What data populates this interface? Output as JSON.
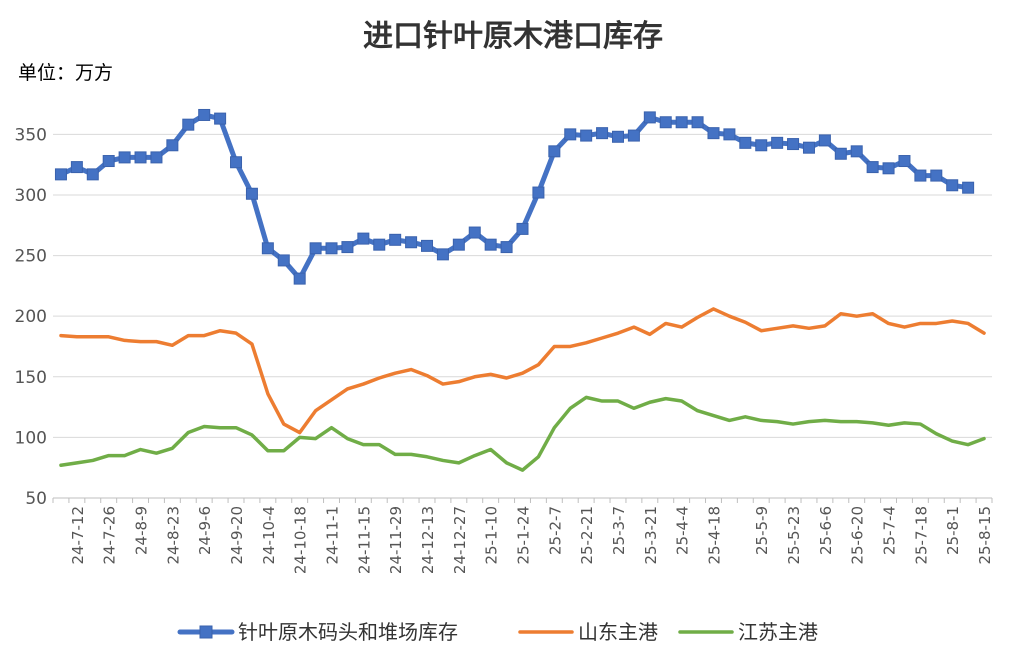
{
  "chart_data": {
    "type": "line",
    "title": "进口针叶原木港口库存",
    "unit_label": "单位：万方",
    "ylim": [
      50,
      380
    ],
    "yticks": [
      50,
      100,
      150,
      200,
      250,
      300,
      350
    ],
    "grid": "horizontal",
    "legend_position": "bottom",
    "x": [
      "24-7-5",
      "24-7-12",
      "24-7-19",
      "24-7-26",
      "24-8-2",
      "24-8-9",
      "24-8-16",
      "24-8-23",
      "24-8-30",
      "24-9-6",
      "24-9-13",
      "24-9-20",
      "24-9-27",
      "24-10-4",
      "24-10-11",
      "24-10-18",
      "24-10-25",
      "24-11-1",
      "24-11-8",
      "24-11-15",
      "24-11-22",
      "24-11-29",
      "24-12-6",
      "24-12-13",
      "24-12-20",
      "24-12-27",
      "25-1-3",
      "25-1-10",
      "25-1-17",
      "25-1-24",
      "25-1-31",
      "25-2-7",
      "25-2-14",
      "25-2-21",
      "25-2-28",
      "25-3-7",
      "25-3-14",
      "25-3-21",
      "25-3-28",
      "25-4-4",
      "25-4-11",
      "25-4-18",
      "25-4-25",
      "25-5-2",
      "25-5-9",
      "25-5-16",
      "25-5-23",
      "25-5-30",
      "25-6-6",
      "25-6-13",
      "25-6-20",
      "25-6-27",
      "25-7-4",
      "25-7-11",
      "25-7-18",
      "25-7-25",
      "25-8-1",
      "25-8-8",
      "25-8-15"
    ],
    "xtick_labels": [
      "24-7-12",
      "24-7-26",
      "24-8-9",
      "24-8-23",
      "24-9-6",
      "24-9-20",
      "24-10-4",
      "24-10-18",
      "24-11-1",
      "24-11-15",
      "24-11-29",
      "24-12-13",
      "24-12-27",
      "25-1-10",
      "25-1-24",
      "25-2-7",
      "25-2-21",
      "25-3-7",
      "25-3-21",
      "25-4-4",
      "25-4-18",
      "25-5-9",
      "25-5-23",
      "25-6-6",
      "25-6-20",
      "25-7-4",
      "25-7-18",
      "25-8-1",
      "25-8-15"
    ],
    "series": [
      {
        "name": "针叶原木码头和堆场库存",
        "color": "#4472C4",
        "marker": "square",
        "values": [
          317,
          323,
          317,
          328,
          331,
          331,
          331,
          341,
          358,
          366,
          363,
          327,
          301,
          256,
          246,
          231,
          256,
          256,
          257,
          264,
          259,
          263,
          261,
          258,
          251,
          259,
          269,
          259,
          257,
          272,
          302,
          336,
          350,
          349,
          351,
          348,
          349,
          364,
          360,
          360,
          360,
          351,
          350,
          343,
          341,
          343,
          342,
          339,
          345,
          334,
          336,
          323,
          322,
          328,
          316,
          316,
          308,
          306,
          null
        ],
        "values_note": ""
      },
      {
        "name": "山东主港",
        "color": "#ED7D31",
        "marker": "none",
        "values": [
          184,
          183,
          183,
          183,
          180,
          179,
          179,
          176,
          184,
          184,
          188,
          186,
          177,
          136,
          111,
          104,
          122,
          131,
          140,
          144,
          149,
          153,
          156,
          151,
          144,
          146,
          150,
          152,
          149,
          153,
          160,
          175,
          175,
          178,
          182,
          186,
          191,
          185,
          194,
          191,
          199,
          206,
          200,
          195,
          188,
          190,
          192,
          190,
          192,
          202,
          200,
          202,
          194,
          191,
          194,
          194,
          196,
          194,
          186
        ]
      },
      {
        "name": "江苏主港",
        "color": "#70AD47",
        "marker": "none",
        "values": [
          77,
          79,
          81,
          85,
          85,
          90,
          87,
          91,
          104,
          109,
          108,
          108,
          102,
          89,
          89,
          100,
          99,
          108,
          99,
          94,
          94,
          86,
          86,
          84,
          81,
          79,
          85,
          90,
          79,
          73,
          84,
          108,
          124,
          133,
          130,
          130,
          124,
          129,
          132,
          130,
          122,
          118,
          114,
          117,
          114,
          113,
          111,
          113,
          114,
          113,
          113,
          112,
          110,
          112,
          111,
          103,
          97,
          94,
          99
        ]
      }
    ]
  }
}
